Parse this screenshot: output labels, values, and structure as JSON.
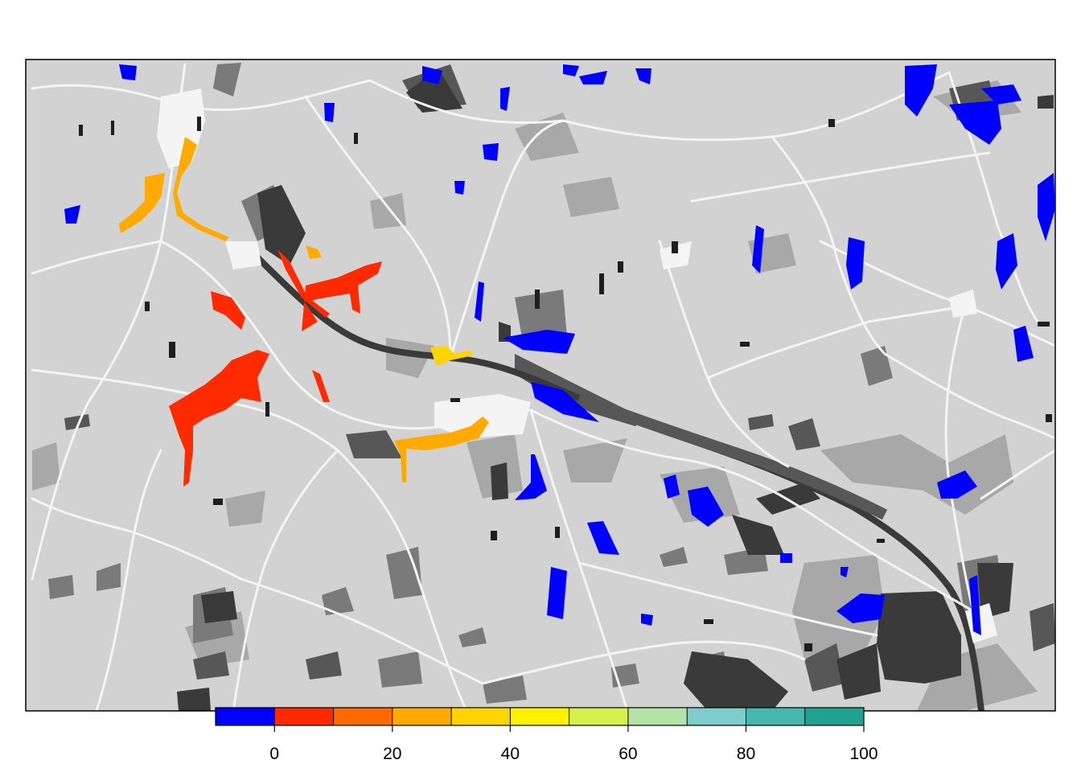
{
  "legend": {
    "ticks": [
      "0",
      "20",
      "40",
      "60",
      "80",
      "100"
    ],
    "tick_values": [
      0,
      20,
      40,
      60,
      80,
      100
    ],
    "range": [
      -10,
      100
    ],
    "bins": [
      {
        "from": -10,
        "to": 0,
        "color": "#0000FF"
      },
      {
        "from": 0,
        "to": 10,
        "color": "#FF2A00"
      },
      {
        "from": 10,
        "to": 20,
        "color": "#FF6A00"
      },
      {
        "from": 20,
        "to": 30,
        "color": "#FFAA00"
      },
      {
        "from": 30,
        "to": 40,
        "color": "#FFD400"
      },
      {
        "from": 40,
        "to": 50,
        "color": "#FFF200"
      },
      {
        "from": 50,
        "to": 60,
        "color": "#D6F24A"
      },
      {
        "from": 60,
        "to": 70,
        "color": "#B4E3A8"
      },
      {
        "from": 70,
        "to": 80,
        "color": "#7FCDCB"
      },
      {
        "from": 80,
        "to": 90,
        "color": "#48B8AE"
      },
      {
        "from": 90,
        "to": 100,
        "color": "#1FA38F"
      }
    ]
  },
  "map": {
    "background_color": "#D2D2D2",
    "road_color": "#F4F4F4",
    "shade_colors": [
      "#A8A8A8",
      "#7A7A7A",
      "#575757",
      "#3A3A3A"
    ],
    "water_color": "#0000FF",
    "low_color": "#FF2A00",
    "mid_color": "#FFAA00",
    "high_color": "#FFD400"
  }
}
